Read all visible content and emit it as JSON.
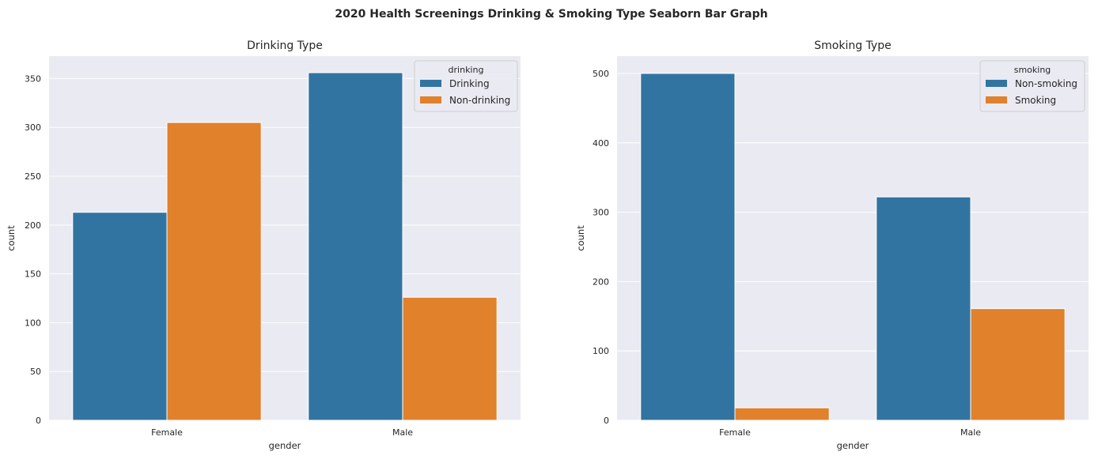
{
  "suptitle": "2020 Health Screenings Drinking & Smoking Type Seaborn Bar Graph",
  "chart_data": [
    {
      "type": "bar",
      "title": "Drinking Type",
      "xlabel": "gender",
      "ylabel": "count",
      "categories": [
        "Female",
        "Male"
      ],
      "ylim": [
        0,
        373
      ],
      "yticks": [
        0,
        50,
        100,
        150,
        200,
        250,
        300,
        350
      ],
      "legend_title": "drinking",
      "legend_loc": "upper-right",
      "series": [
        {
          "name": "Drinking",
          "color": "#3274a1",
          "values": [
            213,
            356
          ]
        },
        {
          "name": "Non-drinking",
          "color": "#e1812c",
          "values": [
            305,
            126
          ]
        }
      ]
    },
    {
      "type": "bar",
      "title": "Smoking Type",
      "xlabel": "gender",
      "ylabel": "count",
      "categories": [
        "Female",
        "Male"
      ],
      "ylim": [
        0,
        525
      ],
      "yticks": [
        0,
        100,
        200,
        300,
        400,
        500
      ],
      "legend_title": "smoking",
      "legend_loc": "upper-right",
      "series": [
        {
          "name": "Non-smoking",
          "color": "#3274a1",
          "values": [
            500,
            322
          ]
        },
        {
          "name": "Smoking",
          "color": "#e1812c",
          "values": [
            18,
            161
          ]
        }
      ]
    }
  ]
}
